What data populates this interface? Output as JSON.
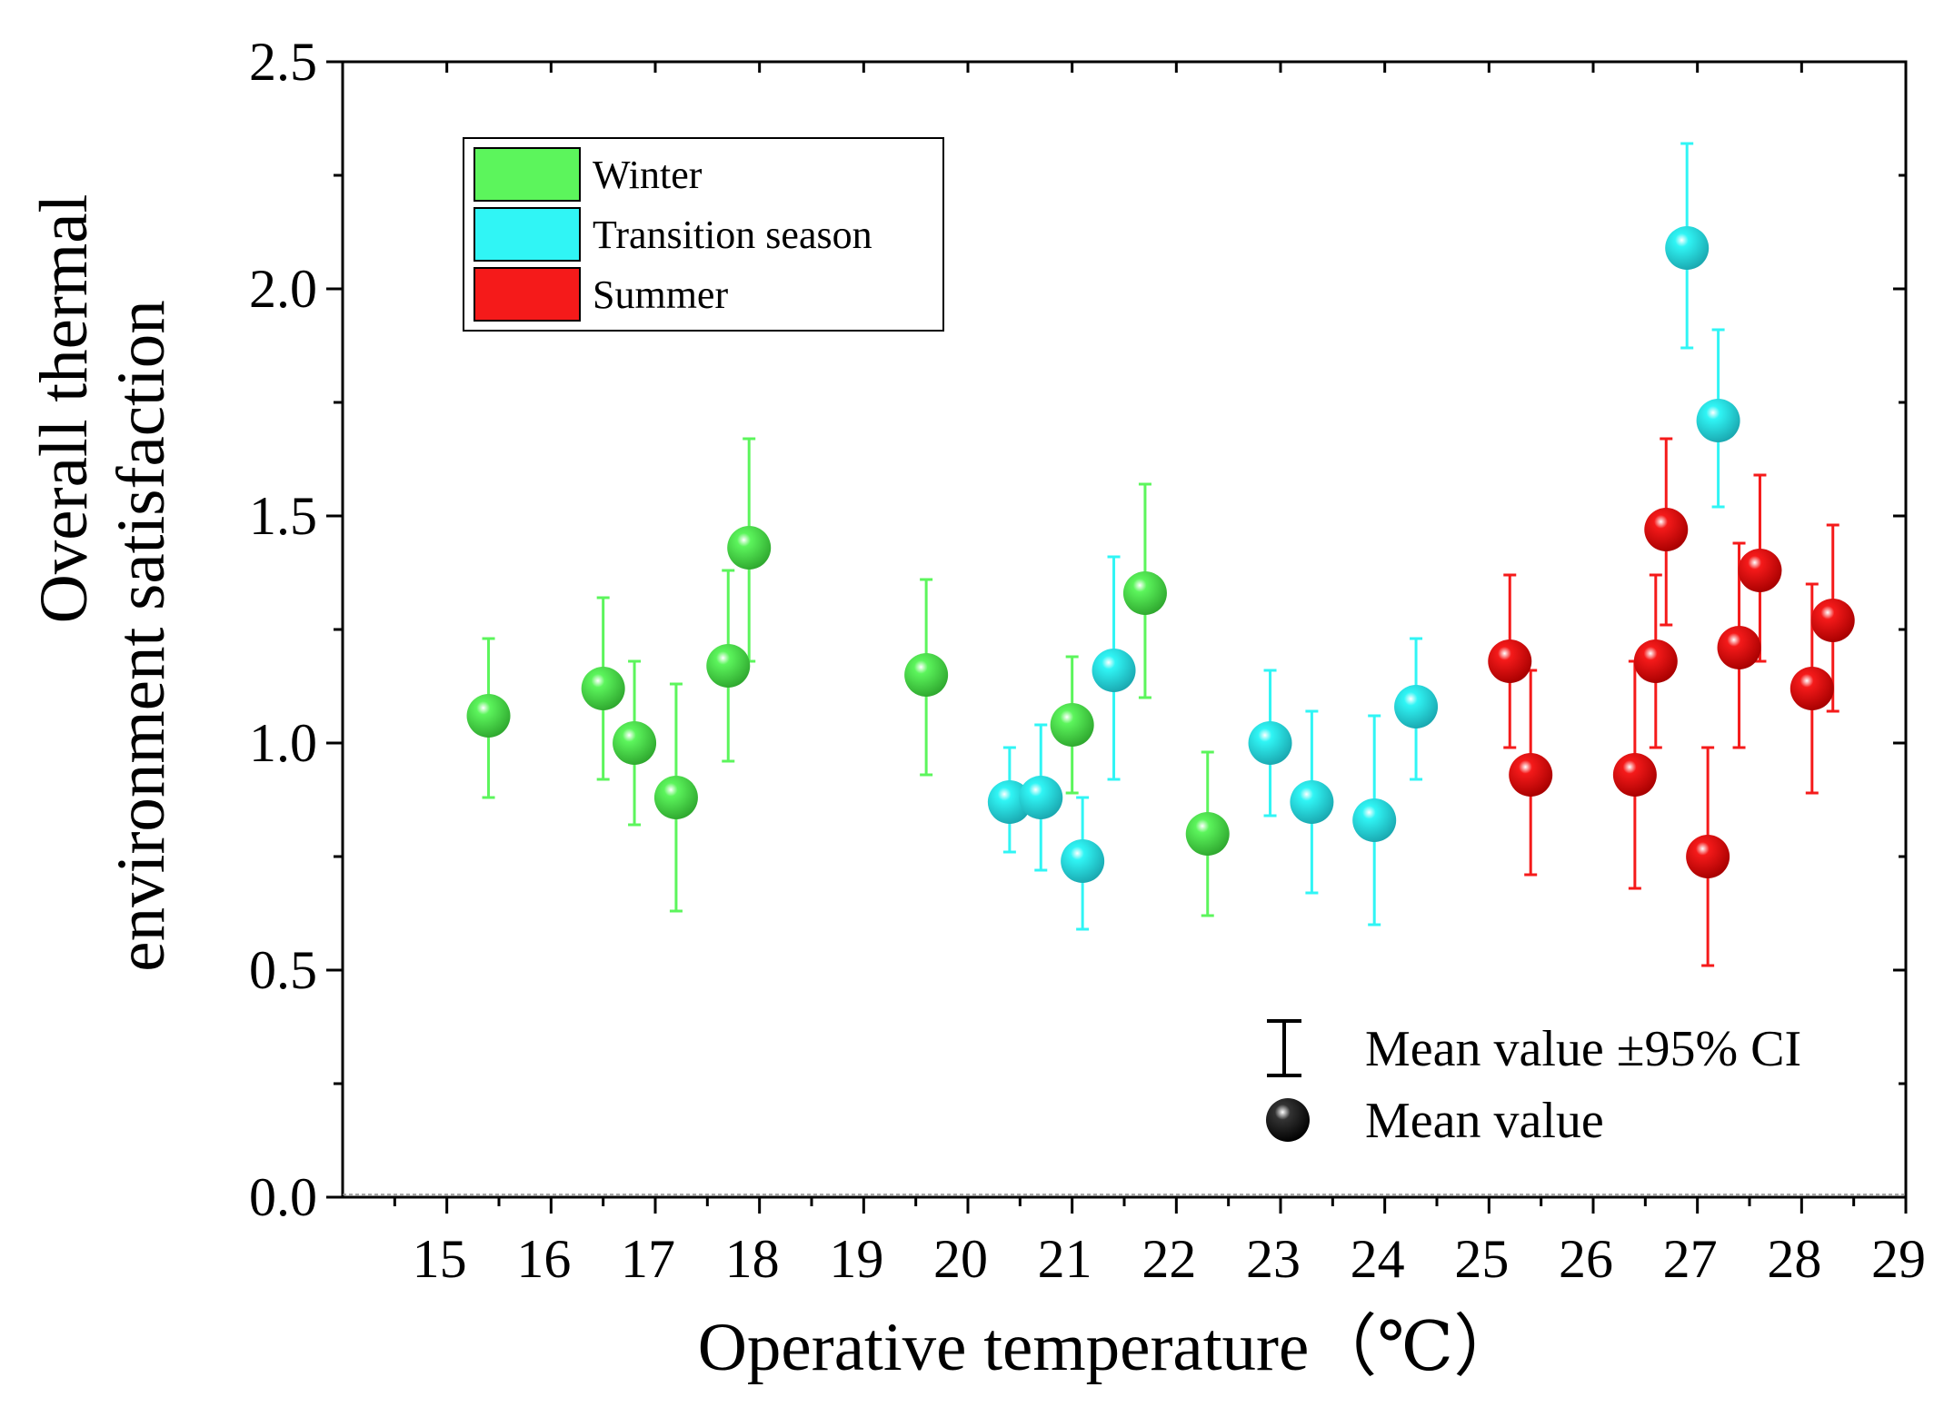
{
  "chart_data": {
    "type": "scatter",
    "xlabel": "Operative temperature（℃）",
    "ylabel": [
      "Overall thermal",
      "environment satisfaction"
    ],
    "xlim": [
      14,
      29
    ],
    "ylim": [
      0,
      2.5
    ],
    "xticks": [
      "15",
      "16",
      "17",
      "18",
      "19",
      "20",
      "21",
      "22",
      "23",
      "24",
      "25",
      "26",
      "27",
      "28",
      "29"
    ],
    "yticks": [
      "0.0",
      "0.5",
      "1.0",
      "1.5",
      "2.0",
      "2.5"
    ],
    "legend_position": "top-left",
    "series": [
      {
        "name": "Winter",
        "color": "#5cf55c",
        "points": [
          {
            "x": 15.4,
            "y": 1.06,
            "low": 0.88,
            "high": 1.23
          },
          {
            "x": 16.5,
            "y": 1.12,
            "low": 0.92,
            "high": 1.32
          },
          {
            "x": 16.8,
            "y": 1.0,
            "low": 0.82,
            "high": 1.18
          },
          {
            "x": 17.2,
            "y": 0.88,
            "low": 0.63,
            "high": 1.13
          },
          {
            "x": 17.7,
            "y": 1.17,
            "low": 0.96,
            "high": 1.38
          },
          {
            "x": 17.9,
            "y": 1.43,
            "low": 1.18,
            "high": 1.67
          },
          {
            "x": 19.6,
            "y": 1.15,
            "low": 0.93,
            "high": 1.36
          },
          {
            "x": 21.0,
            "y": 1.04,
            "low": 0.89,
            "high": 1.19
          },
          {
            "x": 21.7,
            "y": 1.33,
            "low": 1.1,
            "high": 1.57
          },
          {
            "x": 22.3,
            "y": 0.8,
            "low": 0.62,
            "high": 0.98
          }
        ]
      },
      {
        "name": "Transition season",
        "color": "#30f5f5",
        "points": [
          {
            "x": 20.4,
            "y": 0.87,
            "low": 0.76,
            "high": 0.99
          },
          {
            "x": 20.7,
            "y": 0.88,
            "low": 0.72,
            "high": 1.04
          },
          {
            "x": 21.1,
            "y": 0.74,
            "low": 0.59,
            "high": 0.88
          },
          {
            "x": 21.4,
            "y": 1.16,
            "low": 0.92,
            "high": 1.41
          },
          {
            "x": 22.9,
            "y": 1.0,
            "low": 0.84,
            "high": 1.16
          },
          {
            "x": 23.3,
            "y": 0.87,
            "low": 0.67,
            "high": 1.07
          },
          {
            "x": 23.9,
            "y": 0.83,
            "low": 0.6,
            "high": 1.06
          },
          {
            "x": 24.3,
            "y": 1.08,
            "low": 0.92,
            "high": 1.23
          },
          {
            "x": 26.9,
            "y": 2.09,
            "low": 1.87,
            "high": 2.32
          },
          {
            "x": 27.2,
            "y": 1.71,
            "low": 1.52,
            "high": 1.91
          }
        ]
      },
      {
        "name": "Summer",
        "color": "#f51a1a",
        "points": [
          {
            "x": 25.2,
            "y": 1.18,
            "low": 0.99,
            "high": 1.37
          },
          {
            "x": 25.4,
            "y": 0.93,
            "low": 0.71,
            "high": 1.16
          },
          {
            "x": 26.4,
            "y": 0.93,
            "low": 0.68,
            "high": 1.18
          },
          {
            "x": 26.6,
            "y": 1.18,
            "low": 0.99,
            "high": 1.37
          },
          {
            "x": 26.7,
            "y": 1.47,
            "low": 1.26,
            "high": 1.67
          },
          {
            "x": 27.1,
            "y": 0.75,
            "low": 0.51,
            "high": 0.99
          },
          {
            "x": 27.4,
            "y": 1.21,
            "low": 0.99,
            "high": 1.44
          },
          {
            "x": 27.6,
            "y": 1.38,
            "low": 1.18,
            "high": 1.59
          },
          {
            "x": 28.1,
            "y": 1.12,
            "low": 0.89,
            "high": 1.35
          },
          {
            "x": 28.3,
            "y": 1.27,
            "low": 1.07,
            "high": 1.48
          }
        ]
      }
    ],
    "annotations": {
      "ci_label": "Mean value ±95% CI",
      "mean_label": "Mean value"
    }
  }
}
